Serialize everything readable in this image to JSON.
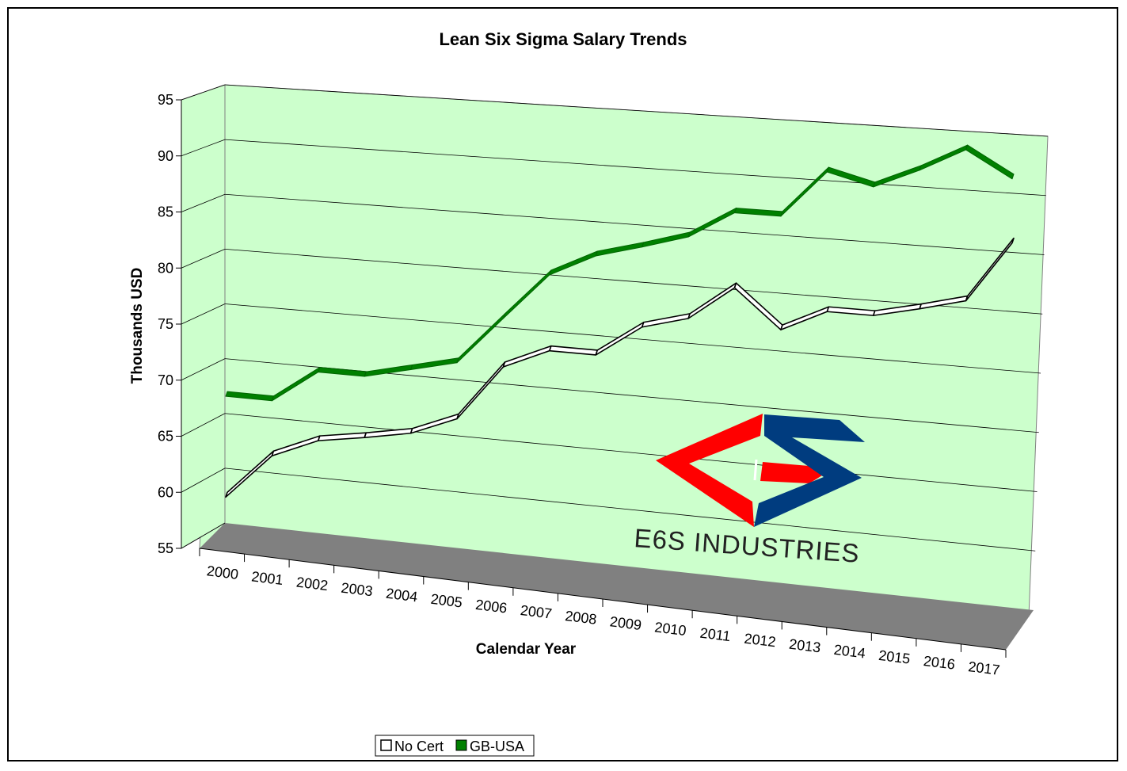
{
  "chart_data": {
    "type": "line",
    "title": "Lean Six Sigma Salary Trends",
    "xlabel": "Calendar Year",
    "ylabel": "Thousands USD",
    "categories": [
      "2000",
      "2001",
      "2002",
      "2003",
      "2004",
      "2005",
      "2006",
      "2007",
      "2008",
      "2009",
      "2010",
      "2011",
      "2012",
      "2013",
      "2014",
      "2015",
      "2016",
      "2017"
    ],
    "ylim": [
      55,
      95
    ],
    "yticks": [
      "55",
      "60",
      "65",
      "70",
      "75",
      "80",
      "85",
      "90",
      "95"
    ],
    "grid": true,
    "three_d": true,
    "legend_position": "bottom",
    "series": [
      {
        "name": "No Cert",
        "color": "#ffffff",
        "values": [
          57.8,
          62.0,
          63.8,
          64.5,
          65.3,
          67.0,
          72.0,
          73.8,
          73.8,
          76.6,
          77.7,
          80.7,
          77.4,
          79.3,
          79.3,
          80.2,
          81.2,
          86.4
        ]
      },
      {
        "name": "GB-USA",
        "color": "#008000",
        "values": [
          67.0,
          67.0,
          70.0,
          70.0,
          71.0,
          72.0,
          76.3,
          80.5,
          82.5,
          83.6,
          84.8,
          87.2,
          87.2,
          91.3,
          90.3,
          92.0,
          94.0,
          91.8
        ]
      }
    ],
    "colors": {
      "wall": "#ccffcc",
      "floor": "#808080",
      "gridline": "#000000"
    }
  },
  "watermark": {
    "text": "E6S INDUSTRIES",
    "colors": {
      "red": "#ff0000",
      "blue": "#003c7f"
    }
  }
}
